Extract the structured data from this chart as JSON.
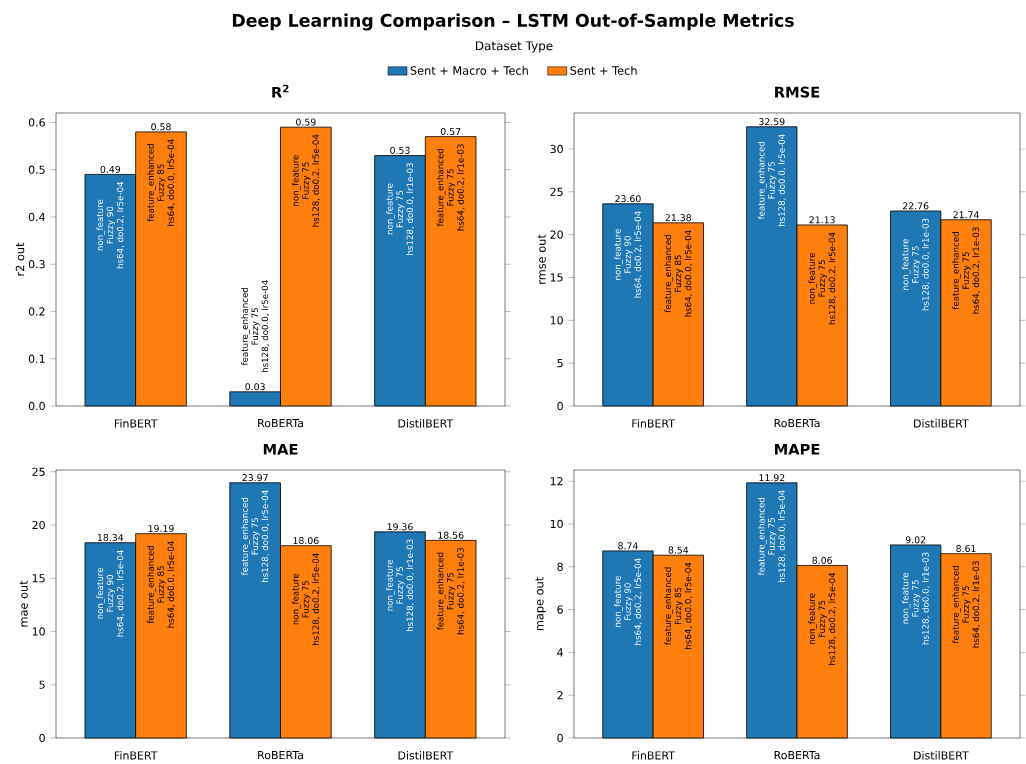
{
  "chart_data": [
    {
      "type": "other",
      "title": "Deep Learning Comparison – LSTM Out-of-Sample Metrics"
    },
    {
      "type": "bar",
      "title": "R$^{2}$",
      "ylabel": "r2 out",
      "legend": "top",
      "legend_title": "Dataset Type",
      "categories": [
        "FinBERT",
        "RoBERTa",
        "DistilBERT"
      ],
      "series": [
        {
          "name": "Sent + Macro + Tech",
          "color": "#1f77b4",
          "values": [
            0.49,
            0.03,
            0.53
          ],
          "value_labels": [
            "0.49",
            "0.03",
            "0.53"
          ]
        },
        {
          "name": "Sent + Tech",
          "color": "#ff7f0e",
          "values": [
            0.58,
            0.59,
            0.57
          ],
          "value_labels": [
            "0.58",
            "0.59",
            "0.57"
          ]
        }
      ],
      "ylim": [
        0,
        0.62
      ],
      "yticks": [
        {
          "value": 0,
          "label": "0.0"
        },
        0.1,
        0.2,
        0.3,
        0.4,
        0.5,
        0.6
      ],
      "annotations": [
        "non_feature",
        "Fuzzy 90",
        "hs64, do0.2, lr5e-04",
        "feature_enhanced",
        "Fuzzy 85",
        "hs64, do0.0, lr5e-04",
        "feature_enhanced",
        "Fuzzy 75",
        "hs128, do0.0, lr5e-04",
        "non_feature",
        "Fuzzy 75",
        "hs128, do0.2, lr5e-04",
        "non_feature",
        "Fuzzy 75",
        "hs128, do0.0, lr1e-03",
        "feature_enhanced",
        "Fuzzy 75",
        "hs64, do0.2, lr1e-03"
      ]
    },
    {
      "type": "bar",
      "title": "RMSE",
      "ylabel": "rmse out",
      "categories": [
        "FinBERT",
        "RoBERTa",
        "DistilBERT"
      ],
      "series": [
        {
          "color": "#1f77b4",
          "values": [
            23.6,
            32.59,
            22.76
          ],
          "value_labels": [
            "23.60",
            "32.59",
            "22.76"
          ]
        },
        {
          "color": "#ff7f0e",
          "values": [
            21.38,
            21.13,
            21.74
          ],
          "value_labels": [
            "21.38",
            "21.13",
            "21.74"
          ]
        }
      ],
      "ylim": [
        0,
        34.2
      ],
      "yticks": [
        0,
        5,
        10,
        15,
        20,
        25,
        30
      ],
      "annotations": [
        "non_feature",
        "Fuzzy 90",
        "hs64, do0.2, lr5e-04",
        "feature_enhanced",
        "Fuzzy 85",
        "hs64, do0.0, lr5e-04",
        "feature_enhanced",
        "Fuzzy 75",
        "hs128, do0.0, lr5e-04",
        "non_feature",
        "Fuzzy 75",
        "hs128, do0.2, lr5e-04",
        "non_feature",
        "Fuzzy 75",
        "hs128, do0.0, lr1e-03",
        "feature_enhanced",
        "Fuzzy 75",
        "hs64, do0.2, lr1e-03"
      ]
    },
    {
      "type": "bar",
      "title": "MAE",
      "ylabel": "mae out",
      "categories": [
        "FinBERT",
        "RoBERTa",
        "DistilBERT"
      ],
      "series": [
        {
          "color": "#1f77b4",
          "values": [
            18.34,
            23.97,
            19.36
          ],
          "value_labels": [
            "18.34",
            "23.97",
            "19.36"
          ]
        },
        {
          "color": "#ff7f0e",
          "values": [
            19.19,
            18.06,
            18.56
          ],
          "value_labels": [
            "19.19",
            "18.06",
            "18.56"
          ]
        }
      ],
      "ylim": [
        0,
        25.17
      ],
      "yticks": [
        0,
        5,
        10,
        15,
        20,
        25
      ],
      "annotations": [
        "non_feature",
        "Fuzzy 90",
        "hs64, do0.2, lr5e-04",
        "feature_enhanced",
        "Fuzzy 85",
        "hs64, do0.0, lr5e-04",
        "feature_enhanced",
        "Fuzzy 75",
        "hs128, do0.0, lr5e-04",
        "non_feature",
        "Fuzzy 75",
        "hs128, do0.2, lr5e-04",
        "non_feature",
        "Fuzzy 75",
        "hs128, do0.0, lr1e-03",
        "feature_enhanced",
        "Fuzzy 75",
        "hs64, do0.2, lr1e-03"
      ]
    },
    {
      "type": "bar",
      "title": "MAPE",
      "ylabel": "mape out",
      "categories": [
        "FinBERT",
        "RoBERTa",
        "DistilBERT"
      ],
      "series": [
        {
          "color": "#1f77b4",
          "values": [
            8.74,
            11.92,
            9.02
          ],
          "value_labels": [
            "8.74",
            "11.92",
            "9.02"
          ]
        },
        {
          "color": "#ff7f0e",
          "values": [
            8.54,
            8.06,
            8.61
          ],
          "value_labels": [
            "8.54",
            "8.06",
            "8.61"
          ]
        }
      ],
      "ylim": [
        0,
        12.52
      ],
      "yticks": [
        0,
        2,
        4,
        6,
        8,
        10,
        12
      ],
      "annotations": [
        "non_feature",
        "Fuzzy 90",
        "hs64, do0.2, lr5e-04",
        "feature_enhanced",
        "Fuzzy 85",
        "hs64, do0.0, lr5e-04",
        "feature_enhanced",
        "Fuzzy 75",
        "hs128, do0.0, lr5e-04",
        "non_feature",
        "Fuzzy 75",
        "hs128, do0.2, lr5e-04",
        "non_feature",
        "Fuzzy 75",
        "hs128, do0.0, lr1e-03",
        "feature_enhanced",
        "Fuzzy 75",
        "hs64, do0.2, lr1e-03"
      ]
    }
  ]
}
